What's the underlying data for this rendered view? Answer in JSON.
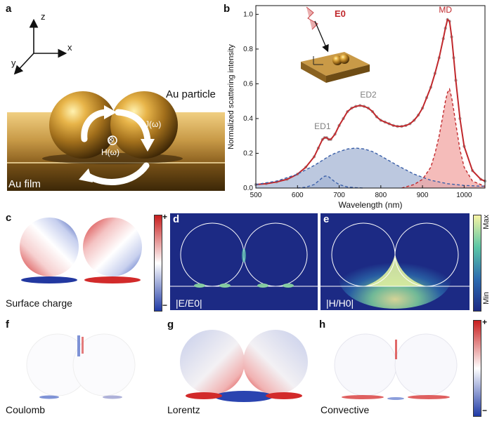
{
  "panels": {
    "a": {
      "label": "a",
      "axes": {
        "z": "z",
        "x": "x",
        "y": "y"
      },
      "au_particle_label": "Au particle",
      "au_film_label": "Au film",
      "current_label": "J(ω)",
      "field_label": "H(ω)",
      "field_symbol": "⊗"
    },
    "b": {
      "label": "b"
    },
    "c": {
      "label": "c",
      "caption": "Surface charge",
      "cbar_plus": "+",
      "cbar_minus": "−"
    },
    "d": {
      "label": "d",
      "caption": "|E/E0|"
    },
    "e": {
      "label": "e",
      "caption": "|H/H0|",
      "cbar_max": "Max",
      "cbar_min": "Min"
    },
    "f": {
      "label": "f",
      "caption": "Coulomb"
    },
    "g": {
      "label": "g",
      "caption": "Lorentz"
    },
    "h": {
      "label": "h",
      "caption": "Convective",
      "cbar_plus": "+",
      "cbar_minus": "−"
    }
  },
  "chart_data": {
    "type": "line",
    "xlabel": "Wavelength (nm)",
    "ylabel": "Normalized scattering intensity",
    "xlim": [
      500,
      1050
    ],
    "ylim": [
      0,
      1.05
    ],
    "xticks": [
      500,
      600,
      700,
      800,
      900,
      1000
    ],
    "yticks": [
      0.0,
      0.2,
      0.4,
      0.6,
      0.8,
      1.0
    ],
    "inset_label": "E0",
    "annotations": [
      {
        "text": "ED1",
        "x": 660,
        "y": 0.34,
        "color": "#808080"
      },
      {
        "text": "ED2",
        "x": 770,
        "y": 0.52,
        "color": "#808080"
      },
      {
        "text": "MD",
        "x": 955,
        "y": 1.01,
        "color": "#c0282c"
      }
    ],
    "series": [
      {
        "role": "measured",
        "color": "#9a9a9a",
        "x": [
          500,
          525,
          550,
          575,
          600,
          620,
          640,
          650,
          660,
          665,
          670,
          675,
          680,
          690,
          700,
          710,
          720,
          730,
          740,
          750,
          760,
          770,
          780,
          790,
          800,
          810,
          820,
          830,
          840,
          850,
          860,
          870,
          880,
          890,
          900,
          910,
          920,
          930,
          940,
          950,
          955,
          960,
          965,
          970,
          975,
          980,
          990,
          1000,
          1020,
          1040,
          1050
        ],
        "y": [
          0.02,
          0.025,
          0.035,
          0.05,
          0.08,
          0.12,
          0.18,
          0.23,
          0.28,
          0.29,
          0.29,
          0.28,
          0.28,
          0.31,
          0.36,
          0.4,
          0.44,
          0.46,
          0.47,
          0.475,
          0.47,
          0.46,
          0.44,
          0.41,
          0.39,
          0.38,
          0.37,
          0.36,
          0.355,
          0.355,
          0.36,
          0.37,
          0.39,
          0.42,
          0.46,
          0.52,
          0.58,
          0.66,
          0.75,
          0.86,
          0.92,
          0.97,
          0.96,
          0.87,
          0.75,
          0.62,
          0.4,
          0.24,
          0.1,
          0.05,
          0.04
        ]
      },
      {
        "role": "fit",
        "color": "#c0282c",
        "x": [
          500,
          525,
          550,
          575,
          600,
          620,
          640,
          650,
          660,
          665,
          670,
          675,
          680,
          690,
          700,
          710,
          720,
          730,
          740,
          750,
          760,
          770,
          780,
          790,
          800,
          810,
          820,
          830,
          840,
          850,
          860,
          870,
          880,
          890,
          900,
          910,
          920,
          930,
          940,
          950,
          955,
          960,
          965,
          970,
          975,
          980,
          990,
          1000,
          1020,
          1040,
          1050
        ],
        "y": [
          0.02,
          0.025,
          0.035,
          0.05,
          0.08,
          0.12,
          0.18,
          0.23,
          0.28,
          0.29,
          0.29,
          0.28,
          0.28,
          0.31,
          0.36,
          0.4,
          0.44,
          0.46,
          0.47,
          0.475,
          0.47,
          0.46,
          0.44,
          0.41,
          0.39,
          0.38,
          0.37,
          0.36,
          0.355,
          0.355,
          0.36,
          0.37,
          0.39,
          0.42,
          0.46,
          0.52,
          0.58,
          0.66,
          0.75,
          0.86,
          0.92,
          0.97,
          0.96,
          0.87,
          0.75,
          0.62,
          0.4,
          0.24,
          0.1,
          0.05,
          0.04
        ]
      },
      {
        "role": "ED1",
        "color": "#3a5fa8",
        "fill": "#a6b6d4",
        "x": [
          600,
          620,
          640,
          650,
          660,
          665,
          670,
          675,
          680,
          690,
          700,
          720,
          740,
          760
        ],
        "y": [
          0.0,
          0.005,
          0.02,
          0.04,
          0.06,
          0.068,
          0.07,
          0.065,
          0.055,
          0.035,
          0.02,
          0.006,
          0.002,
          0.0
        ]
      },
      {
        "role": "ED2",
        "color": "#3a5fa8",
        "fill": "#a6b6d4",
        "x": [
          500,
          550,
          600,
          640,
          680,
          700,
          720,
          740,
          760,
          780,
          800,
          840,
          880,
          920,
          960,
          1000,
          1050
        ],
        "y": [
          0.02,
          0.04,
          0.08,
          0.13,
          0.19,
          0.21,
          0.225,
          0.23,
          0.225,
          0.21,
          0.185,
          0.13,
          0.08,
          0.045,
          0.025,
          0.015,
          0.01
        ]
      },
      {
        "role": "MD",
        "color": "#c0282c",
        "fill": "#f1a5a3",
        "x": [
          850,
          880,
          900,
          920,
          930,
          940,
          950,
          955,
          960,
          965,
          970,
          975,
          980,
          990,
          1000,
          1020,
          1050
        ],
        "y": [
          0.0,
          0.02,
          0.05,
          0.12,
          0.2,
          0.3,
          0.43,
          0.5,
          0.55,
          0.57,
          0.52,
          0.45,
          0.37,
          0.22,
          0.12,
          0.04,
          0.01
        ]
      }
    ]
  }
}
